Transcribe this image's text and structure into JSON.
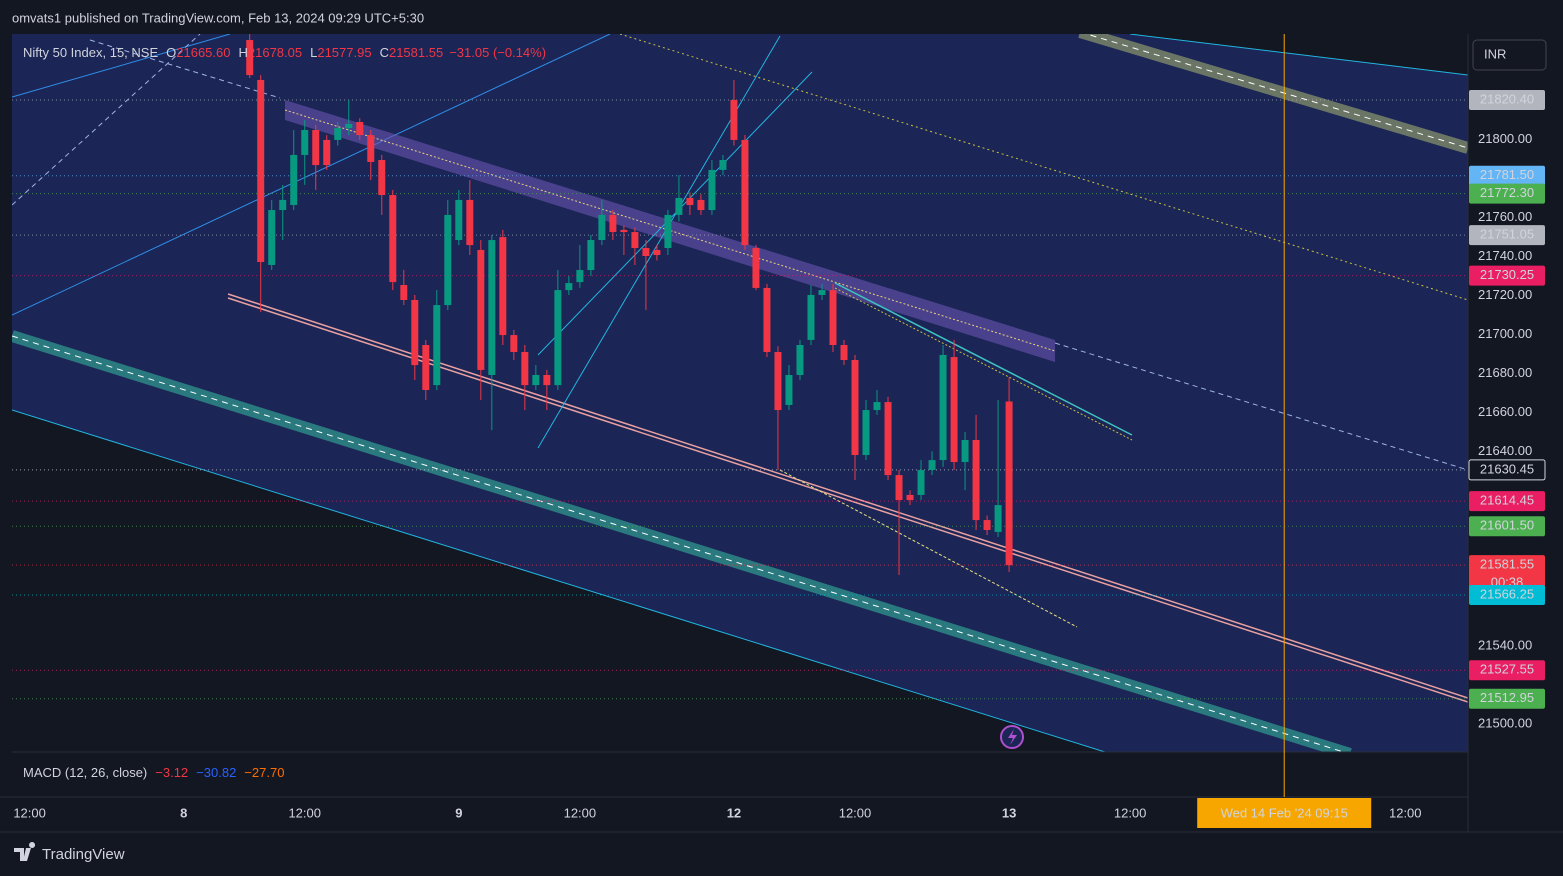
{
  "header": "omvats1 published on TradingView.com, Feb 13, 2024 09:29 UTC+5:30",
  "brand": "TradingView",
  "currency": "INR",
  "legend": {
    "symbol": "Nifty 50 Index, 15, NSE",
    "ohlc_labels": [
      "O",
      "H",
      "L",
      "C"
    ],
    "ohlc_values": [
      "21665.60",
      "21678.05",
      "21577.95",
      "21581.55"
    ],
    "change": "−31.05 (−0.14%)"
  },
  "macd": {
    "title": "MACD (12, 26, close)",
    "values": [
      "−3.12",
      "−30.82",
      "−27.70"
    ],
    "colors": [
      "#f23645",
      "#2962ff",
      "#ff6d00"
    ]
  },
  "chart_data": {
    "type": "candlestick",
    "up_color": "#089981",
    "down_color": "#f23645",
    "xlim": [
      -15.6,
      116.7
    ],
    "ylim": [
      21485.6,
      21854.3
    ],
    "xticks": [
      {
        "value": -14,
        "label": "12:00"
      },
      {
        "value": 0,
        "label": "8"
      },
      {
        "value": 11,
        "label": "12:00"
      },
      {
        "value": 25,
        "label": "9"
      },
      {
        "value": 36,
        "label": "12:00"
      },
      {
        "value": 50,
        "label": "12"
      },
      {
        "value": 61,
        "label": "12:00"
      },
      {
        "value": 75,
        "label": "13"
      },
      {
        "value": 86,
        "label": "12:00"
      },
      {
        "value": 111,
        "label": "12:00"
      }
    ],
    "crosshair": {
      "value": 100,
      "label": "Wed 14 Feb '24   09:15"
    },
    "yticks": [
      {
        "value": 21500,
        "label": "21500.00"
      },
      {
        "value": 21540,
        "label": "21540.00"
      },
      {
        "value": 21640,
        "label": "21640.00"
      },
      {
        "value": 21660,
        "label": "21660.00"
      },
      {
        "value": 21680,
        "label": "21680.00"
      },
      {
        "value": 21700,
        "label": "21700.00"
      },
      {
        "value": 21720,
        "label": "21720.00"
      },
      {
        "value": 21740,
        "label": "21740.00"
      },
      {
        "value": 21760,
        "label": "21760.00"
      },
      {
        "value": 21800,
        "label": "21800.00"
      }
    ],
    "price_lines": [
      {
        "value": 21820.4,
        "label": "21820.40",
        "color": "#b2b5be"
      },
      {
        "value": 21781.5,
        "label": "21781.50",
        "color": "#64b5f6"
      },
      {
        "value": 21772.3,
        "label": "21772.30",
        "color": "#4caf50"
      },
      {
        "value": 21751.05,
        "label": "21751.05",
        "color": "#b2b5be"
      },
      {
        "value": 21730.25,
        "label": "21730.25",
        "color": "#e91e63"
      },
      {
        "value": 21630.45,
        "label": "21630.45",
        "color": "#131722"
      },
      {
        "value": 21614.45,
        "label": "21614.45",
        "color": "#e91e63"
      },
      {
        "value": 21601.5,
        "label": "21601.50",
        "color": "#4caf50"
      },
      {
        "value": 21581.55,
        "label": "21581.55",
        "color": "#f23645",
        "countdown": "00:38"
      },
      {
        "value": 21566.25,
        "label": "21566.25",
        "color": "#00bcd4"
      },
      {
        "value": 21527.55,
        "label": "21527.55",
        "color": "#e91e63"
      },
      {
        "value": 21512.95,
        "label": "21512.95",
        "color": "#4caf50"
      }
    ],
    "x": [
      6,
      7,
      8,
      9,
      10,
      11,
      12,
      13,
      14,
      15,
      16,
      17,
      18,
      19,
      20,
      21,
      22,
      23,
      24,
      25,
      26,
      27,
      28,
      29,
      30,
      31,
      32,
      33,
      34,
      35,
      36,
      37,
      38,
      39,
      40,
      41,
      42,
      43,
      44,
      45,
      46,
      47,
      48,
      49,
      50,
      51,
      52,
      53,
      54,
      55,
      56,
      57,
      58,
      59,
      60,
      61,
      62,
      63,
      64,
      65,
      66,
      67,
      68,
      69,
      70,
      71,
      72,
      73,
      74,
      75
    ],
    "ohlc": [
      [
        21851.2,
        21854.3,
        21831.7,
        21833.2
      ],
      [
        21830.7,
        21833.2,
        21711.5,
        21737.2
      ],
      [
        21735.7,
        21769.1,
        21733.1,
        21763.9
      ],
      [
        21763.9,
        21776.8,
        21748.5,
        21769.1
      ],
      [
        21766.5,
        21805.0,
        21763.9,
        21792.2
      ],
      [
        21792.2,
        21810.1,
        21776.8,
        21805.0
      ],
      [
        21805.0,
        21807.6,
        21774.2,
        21787.0
      ],
      [
        21799.9,
        21802.4,
        21784.5,
        21787.0
      ],
      [
        21799.9,
        21809.1,
        21797.0,
        21806.0
      ],
      [
        21806.0,
        21820.4,
        21802.4,
        21808.1
      ],
      [
        21809.1,
        21811.0,
        21799.9,
        21802.4
      ],
      [
        21802.4,
        21805.0,
        21779.3,
        21788.6
      ],
      [
        21789.6,
        21792.2,
        21761.4,
        21771.6
      ],
      [
        21771.6,
        21774.2,
        21722.8,
        21726.9
      ],
      [
        21725.4,
        21733.1,
        21715.1,
        21717.7
      ],
      [
        21717.7,
        21720.3,
        21676.6,
        21684.3
      ],
      [
        21694.6,
        21697.2,
        21666.3,
        21671.5
      ],
      [
        21674.0,
        21722.8,
        21671.5,
        21715.1
      ],
      [
        21715.1,
        21769.1,
        21712.6,
        21761.4
      ],
      [
        21748.5,
        21774.2,
        21745.9,
        21769.1
      ],
      [
        21769.1,
        21779.3,
        21740.8,
        21745.9
      ],
      [
        21743.4,
        21748.5,
        21666.3,
        21681.8
      ],
      [
        21679.2,
        21751.1,
        21650.9,
        21748.5
      ],
      [
        21750.0,
        21753.7,
        21694.6,
        21699.7
      ],
      [
        21699.7,
        21702.3,
        21686.9,
        21691.0
      ],
      [
        21691.0,
        21694.6,
        21661.2,
        21674.0
      ],
      [
        21674.0,
        21684.3,
        21671.5,
        21679.2
      ],
      [
        21679.2,
        21681.8,
        21661.2,
        21674.0
      ],
      [
        21674.0,
        21733.1,
        21671.5,
        21722.8
      ],
      [
        21722.8,
        21730.0,
        21720.3,
        21726.4
      ],
      [
        21726.9,
        21745.9,
        21724.0,
        21733.1
      ],
      [
        21733.1,
        21751.1,
        21730.0,
        21748.5
      ],
      [
        21748.5,
        21769.1,
        21745.9,
        21761.4
      ],
      [
        21761.4,
        21764.0,
        21748.5,
        21752.6
      ],
      [
        21753.7,
        21756.0,
        21740.8,
        21752.6
      ],
      [
        21752.6,
        21755.0,
        21735.7,
        21744.4
      ],
      [
        21744.4,
        21748.5,
        21712.6,
        21740.3
      ],
      [
        21743.4,
        21746.0,
        21738.0,
        21740.8
      ],
      [
        21744.4,
        21764.0,
        21740.8,
        21761.4
      ],
      [
        21761.4,
        21781.9,
        21758.0,
        21770.1
      ],
      [
        21770.1,
        21773.0,
        21761.4,
        21766.5
      ],
      [
        21769.1,
        21772.0,
        21761.4,
        21763.9
      ],
      [
        21763.9,
        21789.6,
        21761.4,
        21784.5
      ],
      [
        21784.5,
        21792.2,
        21781.9,
        21789.6
      ],
      [
        21820.4,
        21830.7,
        21797.0,
        21799.9
      ],
      [
        21799.9,
        21802.4,
        21743.4,
        21745.9
      ],
      [
        21744.4,
        21746.0,
        21722.8,
        21723.9
      ],
      [
        21723.9,
        21726.0,
        21688.4,
        21691.0
      ],
      [
        21691.0,
        21694.0,
        21630.4,
        21661.2
      ],
      [
        21663.8,
        21684.3,
        21661.2,
        21679.2
      ],
      [
        21679.2,
        21697.2,
        21676.6,
        21694.6
      ],
      [
        21697.2,
        21725.4,
        21694.6,
        21720.3
      ],
      [
        21720.3,
        21726.0,
        21717.7,
        21722.8
      ],
      [
        21722.8,
        21726.0,
        21691.0,
        21694.6
      ],
      [
        21694.6,
        21697.2,
        21684.3,
        21686.9
      ],
      [
        21686.9,
        21689.5,
        21625.3,
        21638.1
      ],
      [
        21638.1,
        21666.3,
        21635.5,
        21661.2
      ],
      [
        21661.2,
        21671.5,
        21658.7,
        21665.3
      ],
      [
        21665.3,
        21668.0,
        21625.3,
        21627.8
      ],
      [
        21627.8,
        21630.4,
        21576.5,
        21615.0
      ],
      [
        21617.6,
        21620.0,
        21612.4,
        21615.0
      ],
      [
        21617.6,
        21635.5,
        21615.0,
        21630.4
      ],
      [
        21630.4,
        21640.0,
        21627.8,
        21635.5
      ],
      [
        21635.5,
        21694.6,
        21632.0,
        21689.5
      ],
      [
        21688.4,
        21697.2,
        21630.4,
        21634.5
      ],
      [
        21634.5,
        21650.0,
        21620.0,
        21645.8
      ],
      [
        21645.8,
        21658.7,
        21599.6,
        21604.7
      ],
      [
        21604.7,
        21607.0,
        21597.0,
        21599.6
      ],
      [
        21598.6,
        21666.3,
        21596.0,
        21612.4
      ],
      [
        21665.6,
        21678.05,
        21577.95,
        21581.55
      ]
    ]
  }
}
